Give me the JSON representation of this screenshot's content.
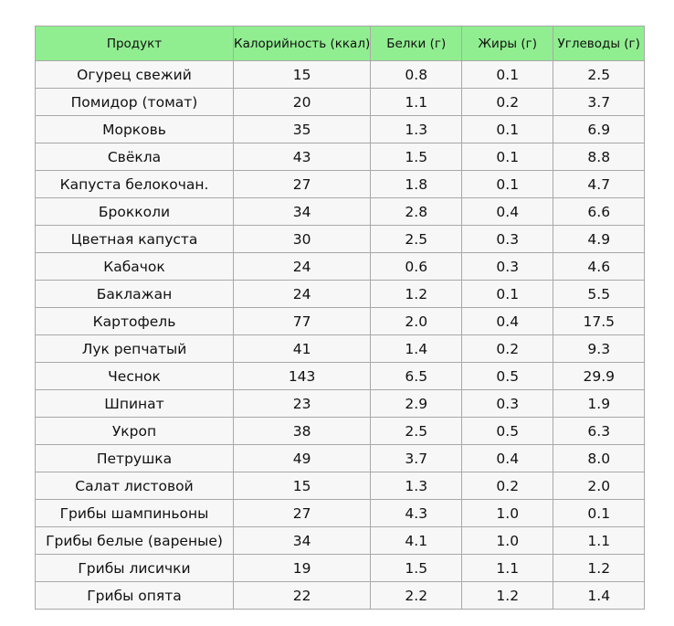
{
  "table": {
    "header": [
      "Продукт",
      "Калорийность (ккал)",
      "Белки (г)",
      "Жиры (г)",
      "Углеводы (г)"
    ],
    "rows": [
      [
        "Огурец свежий",
        "15",
        "0.8",
        "0.1",
        "2.5"
      ],
      [
        "Помидор (томат)",
        "20",
        "1.1",
        "0.2",
        "3.7"
      ],
      [
        "Морковь",
        "35",
        "1.3",
        "0.1",
        "6.9"
      ],
      [
        "Свёкла",
        "43",
        "1.5",
        "0.1",
        "8.8"
      ],
      [
        "Капуста белокочан.",
        "27",
        "1.8",
        "0.1",
        "4.7"
      ],
      [
        "Брокколи",
        "34",
        "2.8",
        "0.4",
        "6.6"
      ],
      [
        "Цветная капуста",
        "30",
        "2.5",
        "0.3",
        "4.9"
      ],
      [
        "Кабачок",
        "24",
        "0.6",
        "0.3",
        "4.6"
      ],
      [
        "Баклажан",
        "24",
        "1.2",
        "0.1",
        "5.5"
      ],
      [
        "Картофель",
        "77",
        "2.0",
        "0.4",
        "17.5"
      ],
      [
        "Лук репчатый",
        "41",
        "1.4",
        "0.2",
        "9.3"
      ],
      [
        "Чеснок",
        "143",
        "6.5",
        "0.5",
        "29.9"
      ],
      [
        "Шпинат",
        "23",
        "2.9",
        "0.3",
        "1.9"
      ],
      [
        "Укроп",
        "38",
        "2.5",
        "0.5",
        "6.3"
      ],
      [
        "Петрушка",
        "49",
        "3.7",
        "0.4",
        "8.0"
      ],
      [
        "Салат листовой",
        "15",
        "1.3",
        "0.2",
        "2.0"
      ],
      [
        "Грибы шампиньоны",
        "27",
        "4.3",
        "1.0",
        "0.1"
      ],
      [
        "Грибы белые (вареные)",
        "34",
        "4.1",
        "1.0",
        "1.1"
      ],
      [
        "Грибы лисички",
        "19",
        "1.5",
        "1.1",
        "1.2"
      ],
      [
        "Грибы опята",
        "22",
        "2.2",
        "1.2",
        "1.4"
      ]
    ]
  }
}
